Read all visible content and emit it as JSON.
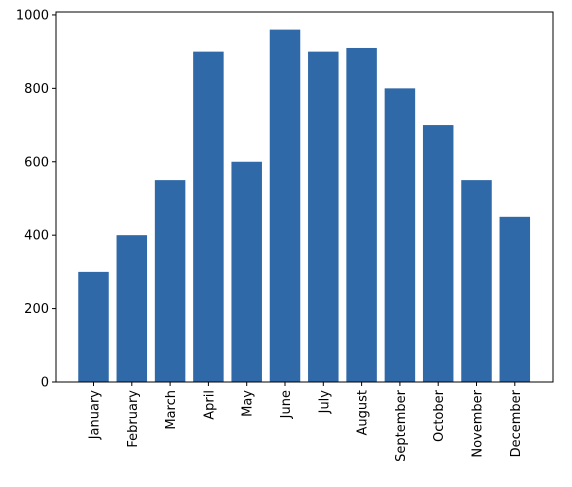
{
  "chart_data": {
    "type": "bar",
    "title": "",
    "xlabel": "",
    "ylabel": "",
    "categories": [
      "January",
      "February",
      "March",
      "April",
      "May",
      "June",
      "July",
      "August",
      "September",
      "October",
      "November",
      "December"
    ],
    "values": [
      300,
      400,
      550,
      900,
      600,
      960,
      900,
      910,
      800,
      700,
      550,
      450
    ],
    "ylim": [
      0,
      1008
    ],
    "yticks": [
      0,
      200,
      400,
      600,
      800,
      1000
    ],
    "ytick_labels": [
      "0",
      "200",
      "400",
      "600",
      "800",
      "1000"
    ],
    "bar_color": "#2f69a7",
    "grid": false,
    "legend": "none"
  }
}
